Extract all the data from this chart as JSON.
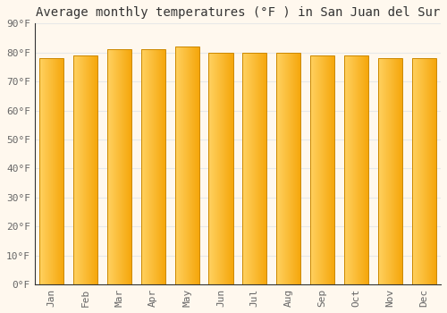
{
  "title": "Average monthly temperatures (°F ) in San Juan del Sur",
  "months": [
    "Jan",
    "Feb",
    "Mar",
    "Apr",
    "May",
    "Jun",
    "Jul",
    "Aug",
    "Sep",
    "Oct",
    "Nov",
    "Dec"
  ],
  "values": [
    78,
    79,
    81,
    81,
    82,
    80,
    80,
    80,
    79,
    79,
    78,
    78
  ],
  "ylim": [
    0,
    90
  ],
  "yticks": [
    0,
    10,
    20,
    30,
    40,
    50,
    60,
    70,
    80,
    90
  ],
  "ytick_labels": [
    "0°F",
    "10°F",
    "20°F",
    "30°F",
    "40°F",
    "50°F",
    "60°F",
    "70°F",
    "80°F",
    "90°F"
  ],
  "bar_color_left": "#FFD060",
  "bar_color_right": "#F5A800",
  "bar_edge_color": "#CC8800",
  "background_color": "#FFF8EE",
  "grid_color": "#E8E8E8",
  "title_fontsize": 10,
  "tick_fontsize": 8,
  "title_font": "monospace",
  "bar_width": 0.72
}
